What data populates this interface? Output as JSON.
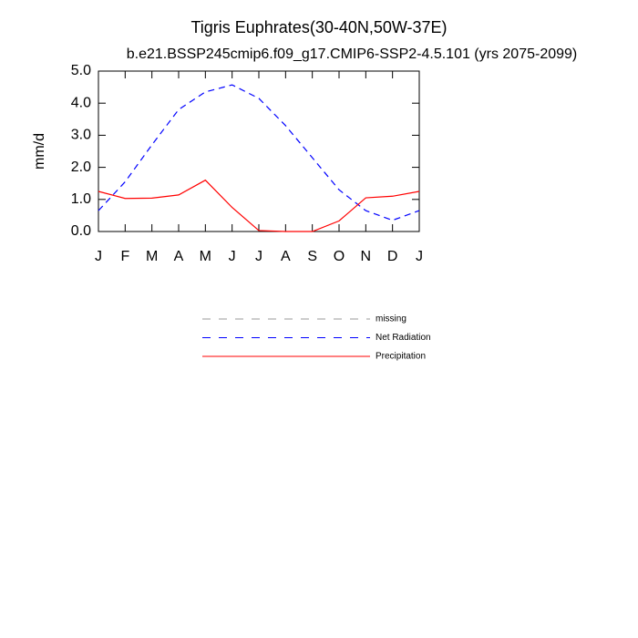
{
  "chart_data": {
    "type": "line",
    "title": "Tigris Euphrates(30-40N,50W-37E)",
    "subtitle": "b.e21.BSSP245cmip6.f09_g17.CMIP6-SSP2-4.5.101 (yrs 2075-2099)",
    "ylabel": "mm/d",
    "categories": [
      "J",
      "F",
      "M",
      "A",
      "M",
      "J",
      "J",
      "A",
      "S",
      "O",
      "N",
      "D",
      "J"
    ],
    "series": [
      {
        "name": "missing",
        "color": "#999999",
        "dash": true,
        "values": [
          null,
          null,
          null,
          null,
          null,
          null,
          null,
          null,
          null,
          null,
          null,
          null,
          null
        ]
      },
      {
        "name": "Net Radiation",
        "color": "#0000ff",
        "dash": true,
        "values": [
          0.65,
          1.55,
          2.7,
          3.8,
          4.35,
          4.57,
          4.15,
          3.3,
          2.3,
          1.3,
          0.65,
          0.35,
          0.65
        ]
      },
      {
        "name": "Precipitation",
        "color": "#ff0000",
        "dash": false,
        "values": [
          1.25,
          1.03,
          1.04,
          1.14,
          1.6,
          0.75,
          0.03,
          0.0,
          0.0,
          0.33,
          1.05,
          1.1,
          1.25
        ]
      }
    ],
    "ylim": [
      0,
      5
    ],
    "yticks": [
      {
        "value": 0,
        "label": "0.0"
      },
      {
        "value": 1,
        "label": "1.0"
      },
      {
        "value": 2,
        "label": "2.0"
      },
      {
        "value": 3,
        "label": "3.0"
      },
      {
        "value": 4,
        "label": "4.0"
      },
      {
        "value": 5,
        "label": "5.0"
      }
    ],
    "grid": false
  }
}
